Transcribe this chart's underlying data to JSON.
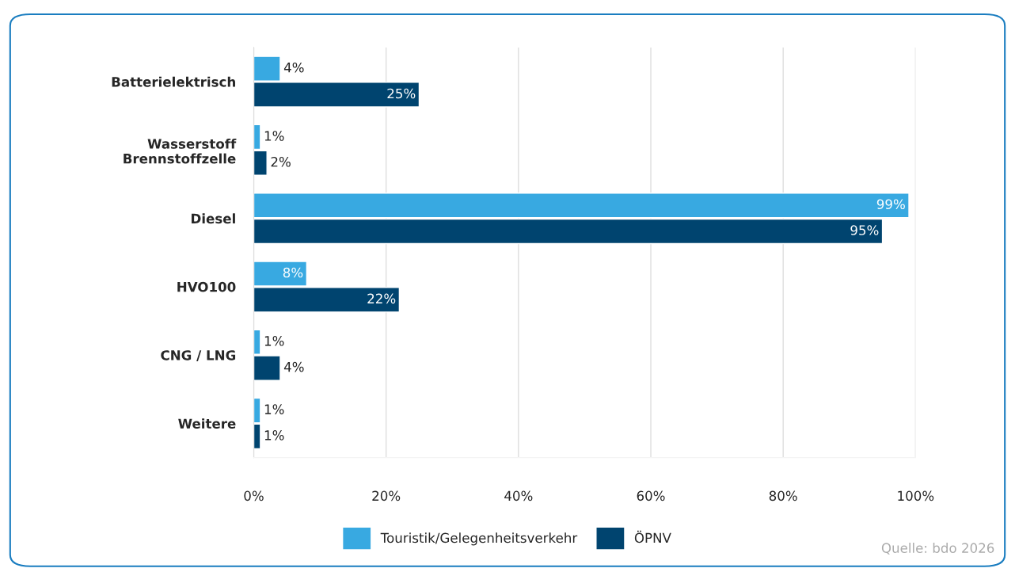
{
  "chart_data": {
    "type": "bar",
    "orientation": "horizontal",
    "categories": [
      "Batterielektrisch",
      "Wasserstoff\nBrennstoffzelle",
      "Diesel",
      "HVO100",
      "CNG / LNG",
      "Weitere"
    ],
    "series": [
      {
        "name": "Touristik/Gelegenheitsverkehr",
        "color": "#38a9e1",
        "values": [
          4,
          1,
          99,
          8,
          1,
          1
        ],
        "value_labels": [
          "4%",
          "1%",
          "99%",
          "8%",
          "1%",
          "1%"
        ]
      },
      {
        "name": "ÖPNV",
        "color": "#00446f",
        "values": [
          25,
          2,
          95,
          22,
          4,
          1
        ],
        "value_labels": [
          "25%",
          "2%",
          "95%",
          "22%",
          "4%",
          "1%"
        ]
      }
    ],
    "xlim": [
      0,
      100
    ],
    "xticks": [
      {
        "value": 0,
        "label": "0%"
      },
      {
        "value": 20,
        "label": "20%"
      },
      {
        "value": 40,
        "label": "40%"
      },
      {
        "value": 60,
        "label": "60%"
      },
      {
        "value": 80,
        "label": "80%"
      },
      {
        "value": 100,
        "label": "100%"
      }
    ],
    "grid": "x",
    "legend": "bottom",
    "annotations": [
      "Quelle: bdo 2026"
    ]
  }
}
